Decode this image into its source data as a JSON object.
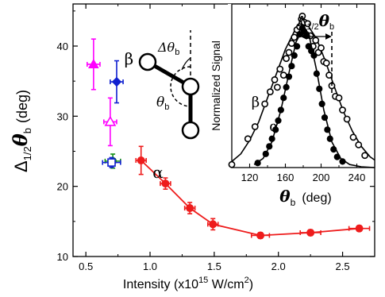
{
  "chart_data": [
    {
      "type": "scatter",
      "xlabel": {
        "prefix": "Intensity (x10",
        "sup": "15",
        "mid": " W/cm",
        "sup2": "2",
        "suffix": ")"
      },
      "ylabel": {
        "prefix": "Δ",
        "sub": "1/2",
        "theta": "θ",
        "sub2": "b",
        "unit": "(deg)"
      },
      "xlim": [
        0.4,
        2.75
      ],
      "ylim": [
        10,
        46
      ],
      "xticks": [
        0.5,
        1.0,
        1.5,
        2.0,
        2.5
      ],
      "xtick_labels": [
        "0.5",
        "1.0",
        "1.5",
        "2.0",
        "2.5"
      ],
      "yticks": [
        10,
        20,
        30,
        40
      ],
      "ytick_labels": [
        "10",
        "20",
        "30",
        "40"
      ],
      "series": [
        {
          "name": "α",
          "color": "#ee1c1c",
          "marker": "circle-filled",
          "connected": true,
          "points": [
            {
              "x": 0.93,
              "y": 23.7,
              "xerr": 0.04,
              "yerr": 2.0
            },
            {
              "x": 1.12,
              "y": 20.4,
              "xerr": 0.04,
              "yerr": 0.8
            },
            {
              "x": 1.31,
              "y": 16.9,
              "xerr": 0.04,
              "yerr": 0.8
            },
            {
              "x": 1.49,
              "y": 14.6,
              "xerr": 0.04,
              "yerr": 0.8
            },
            {
              "x": 1.86,
              "y": 13.0,
              "xerr": 0.07,
              "yerr": 0.4
            },
            {
              "x": 2.25,
              "y": 13.4,
              "xerr": 0.08,
              "yerr": 0.4
            },
            {
              "x": 2.63,
              "y": 14.0,
              "xerr": 0.08,
              "yerr": 0.4
            }
          ]
        },
        {
          "name": "β",
          "color": "#1020d0",
          "marker": "diamond-filled",
          "points": [
            {
              "x": 0.74,
              "y": 34.9,
              "xerr": 0.05,
              "yerr": 3.0
            }
          ]
        },
        {
          "name": "",
          "color": "#ff00ff",
          "marker": "triangle-filled",
          "points": [
            {
              "x": 0.56,
              "y": 37.4,
              "xerr": 0.05,
              "yerr": 3.6
            }
          ]
        },
        {
          "name": "",
          "color": "#ff00ff",
          "marker": "triangle-open",
          "points": [
            {
              "x": 0.69,
              "y": 29.2,
              "xerr": 0.05,
              "yerr": 3.4
            }
          ]
        },
        {
          "name": "",
          "color": "#129012",
          "marker": "circle-filled",
          "points": [
            {
              "x": 0.71,
              "y": 23.6,
              "xerr": 0.06,
              "yerr": 1.0
            }
          ]
        },
        {
          "name": "",
          "color": "#1020d0",
          "marker": "square-open",
          "points": [
            {
              "x": 0.7,
              "y": 23.4,
              "xerr": 0.07,
              "yerr": 0.7
            }
          ]
        }
      ],
      "annotations": [
        {
          "text": "α",
          "x": 1.02,
          "y": 21.2
        },
        {
          "text": "β",
          "x": 0.8,
          "y": 37.4
        }
      ]
    },
    {
      "type": "scatter",
      "xlabel": {
        "theta": "θ",
        "sub": "b",
        "unit": "(deg)"
      },
      "ylabel": "Normalized Signal",
      "xlim": [
        100,
        260
      ],
      "ylim": [
        0,
        1.08
      ],
      "xticks": [
        120,
        160,
        200,
        240
      ],
      "xtick_labels": [
        "120",
        "160",
        "200",
        "240"
      ],
      "width_marker": {
        "label_prefix": "Δ",
        "label_sub": "1/2",
        "label_theta": "θ",
        "label_sub2": "b",
        "x_left": 176,
        "x_right": 212
      },
      "series": [
        {
          "name": "β",
          "marker": "circle-open",
          "points": [
            [
              100,
              0.02
            ],
            [
              118,
              0.19
            ],
            [
              126,
              0.27
            ],
            [
              137,
              0.42
            ],
            [
              143,
              0.5
            ],
            [
              148,
              0.58
            ],
            [
              151,
              0.53
            ],
            [
              154,
              0.65
            ],
            [
              158,
              0.61
            ],
            [
              161,
              0.72
            ],
            [
              164,
              0.76
            ],
            [
              167,
              0.82
            ],
            [
              170,
              0.86
            ],
            [
              173,
              0.91
            ],
            [
              176,
              0.93
            ],
            [
              178,
              0.98
            ],
            [
              179,
              1.0
            ],
            [
              181,
              0.96
            ],
            [
              183,
              0.88
            ],
            [
              185,
              0.95
            ],
            [
              188,
              0.87
            ],
            [
              191,
              0.8
            ],
            [
              194,
              0.84
            ],
            [
              197,
              0.76
            ],
            [
              200,
              0.79
            ],
            [
              203,
              0.7
            ],
            [
              206,
              0.69
            ],
            [
              209,
              0.61
            ],
            [
              212,
              0.54
            ],
            [
              216,
              0.47
            ],
            [
              220,
              0.46
            ],
            [
              224,
              0.38
            ],
            [
              229,
              0.32
            ],
            [
              236,
              0.2
            ],
            [
              242,
              0.15
            ],
            [
              249,
              0.08
            ]
          ],
          "fit": [
            [
              100,
              0.04
            ],
            [
              110,
              0.09
            ],
            [
              120,
              0.18
            ],
            [
              130,
              0.3
            ],
            [
              140,
              0.46
            ],
            [
              150,
              0.62
            ],
            [
              160,
              0.78
            ],
            [
              170,
              0.9
            ],
            [
              178,
              0.95
            ],
            [
              185,
              0.94
            ],
            [
              195,
              0.85
            ],
            [
              205,
              0.7
            ],
            [
              215,
              0.53
            ],
            [
              225,
              0.37
            ],
            [
              235,
              0.24
            ],
            [
              245,
              0.14
            ],
            [
              255,
              0.07
            ],
            [
              260,
              0.05
            ]
          ]
        },
        {
          "name": "α",
          "marker": "circle-filled",
          "points": [
            [
              129,
              0.03
            ],
            [
              138,
              0.09
            ],
            [
              142,
              0.14
            ],
            [
              145,
              0.19
            ],
            [
              149,
              0.25
            ],
            [
              152,
              0.31
            ],
            [
              155,
              0.38
            ],
            [
              158,
              0.46
            ],
            [
              161,
              0.53
            ],
            [
              164,
              0.6
            ],
            [
              167,
              0.67
            ],
            [
              170,
              0.74
            ],
            [
              173,
              0.8
            ],
            [
              176,
              0.88
            ],
            [
              179,
              0.92
            ],
            [
              181,
              0.9
            ],
            [
              184,
              0.87
            ],
            [
              186,
              0.8
            ],
            [
              189,
              0.77
            ],
            [
              192,
              0.74
            ],
            [
              195,
              0.62
            ],
            [
              198,
              0.52
            ],
            [
              201,
              0.42
            ],
            [
              204,
              0.33
            ],
            [
              207,
              0.25
            ],
            [
              210,
              0.19
            ],
            [
              214,
              0.12
            ],
            [
              218,
              0.07
            ],
            [
              224,
              0.04
            ]
          ],
          "fit": [
            [
              125,
              0.02
            ],
            [
              135,
              0.06
            ],
            [
              145,
              0.17
            ],
            [
              155,
              0.38
            ],
            [
              165,
              0.65
            ],
            [
              172,
              0.83
            ],
            [
              180,
              0.92
            ],
            [
              187,
              0.86
            ],
            [
              195,
              0.64
            ],
            [
              203,
              0.38
            ],
            [
              212,
              0.17
            ],
            [
              222,
              0.06
            ],
            [
              232,
              0.02
            ],
            [
              245,
              0.005
            ],
            [
              260,
              0
            ]
          ]
        }
      ],
      "annotations": [
        {
          "text": "β",
          "x": 122,
          "y": 0.4
        },
        {
          "text": "α",
          "x": 142,
          "y": 0.24
        }
      ]
    }
  ],
  "schematic": {
    "angle_label": "θ",
    "angle_sub": "b",
    "delta_label": "Δθ",
    "delta_sub": "b"
  }
}
